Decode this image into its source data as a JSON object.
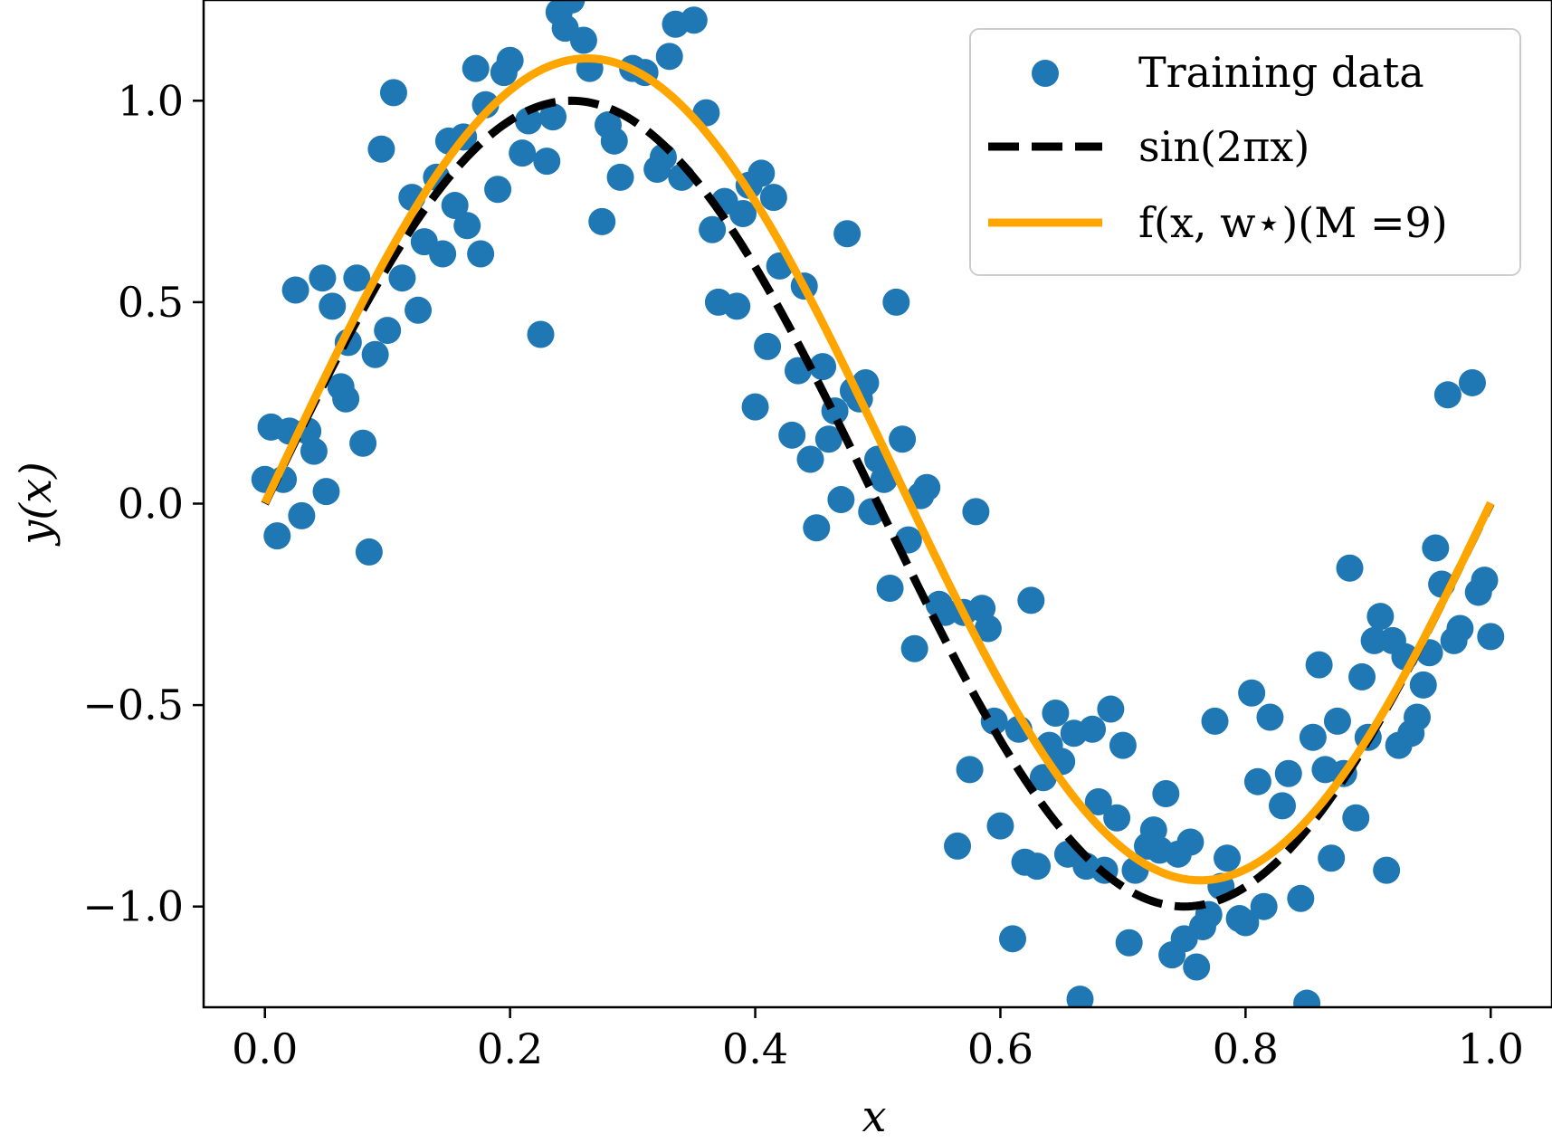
{
  "chart_data": {
    "type": "scatter",
    "xlabel": "x",
    "ylabel": "y(x)",
    "xlim": [
      -0.05,
      1.05
    ],
    "ylim": [
      -1.25,
      1.25
    ],
    "xticks": [
      0.0,
      0.2,
      0.4,
      0.6,
      0.8,
      1.0
    ],
    "xtick_labels": [
      "0.0",
      "0.2",
      "0.4",
      "0.6",
      "0.8",
      "1.0"
    ],
    "yticks": [
      -1.0,
      -0.5,
      0.0,
      0.5,
      1.0
    ],
    "ytick_labels": [
      "−1.0",
      "−0.5",
      "0.0",
      "0.5",
      "1.0"
    ],
    "grid": false,
    "legend_position": "top-right",
    "series": [
      {
        "name": "Training data",
        "kind": "scatter",
        "color": "#1f77b4",
        "points": [
          [
            0.0,
            0.06
          ],
          [
            0.005,
            0.19
          ],
          [
            0.01,
            -0.08
          ],
          [
            0.015,
            0.06
          ],
          [
            0.02,
            0.18
          ],
          [
            0.025,
            0.53
          ],
          [
            0.03,
            -0.03
          ],
          [
            0.035,
            0.18
          ],
          [
            0.04,
            0.13
          ],
          [
            0.05,
            0.03
          ],
          [
            0.047,
            0.56
          ],
          [
            0.055,
            0.49
          ],
          [
            0.062,
            0.29
          ],
          [
            0.066,
            0.26
          ],
          [
            0.068,
            0.4
          ],
          [
            0.075,
            0.56
          ],
          [
            0.08,
            0.15
          ],
          [
            0.085,
            -0.12
          ],
          [
            0.09,
            0.37
          ],
          [
            0.095,
            0.88
          ],
          [
            0.1,
            0.43
          ],
          [
            0.105,
            1.02
          ],
          [
            0.112,
            0.56
          ],
          [
            0.12,
            0.76
          ],
          [
            0.125,
            0.48
          ],
          [
            0.13,
            0.65
          ],
          [
            0.14,
            0.81
          ],
          [
            0.145,
            0.62
          ],
          [
            0.15,
            0.9
          ],
          [
            0.155,
            0.74
          ],
          [
            0.162,
            0.91
          ],
          [
            0.165,
            0.69
          ],
          [
            0.172,
            1.08
          ],
          [
            0.176,
            0.62
          ],
          [
            0.18,
            0.99
          ],
          [
            0.19,
            0.78
          ],
          [
            0.195,
            1.07
          ],
          [
            0.2,
            1.1
          ],
          [
            0.21,
            0.87
          ],
          [
            0.215,
            0.95
          ],
          [
            0.225,
            0.42
          ],
          [
            0.23,
            0.85
          ],
          [
            0.235,
            0.96
          ],
          [
            0.24,
            1.22
          ],
          [
            0.245,
            1.18
          ],
          [
            0.25,
            1.25
          ],
          [
            0.26,
            1.15
          ],
          [
            0.265,
            1.08
          ],
          [
            0.275,
            0.7
          ],
          [
            0.28,
            0.94
          ],
          [
            0.285,
            0.9
          ],
          [
            0.29,
            0.81
          ],
          [
            0.3,
            1.08
          ],
          [
            0.31,
            1.07
          ],
          [
            0.32,
            0.83
          ],
          [
            0.325,
            0.86
          ],
          [
            0.33,
            1.11
          ],
          [
            0.335,
            1.19
          ],
          [
            0.34,
            0.81
          ],
          [
            0.35,
            1.2
          ],
          [
            0.36,
            0.97
          ],
          [
            0.365,
            0.68
          ],
          [
            0.37,
            0.5
          ],
          [
            0.375,
            0.75
          ],
          [
            0.385,
            0.49
          ],
          [
            0.39,
            0.72
          ],
          [
            0.395,
            0.79
          ],
          [
            0.4,
            0.24
          ],
          [
            0.405,
            0.82
          ],
          [
            0.41,
            0.39
          ],
          [
            0.415,
            0.76
          ],
          [
            0.42,
            0.59
          ],
          [
            0.43,
            0.17
          ],
          [
            0.435,
            0.33
          ],
          [
            0.44,
            0.54
          ],
          [
            0.445,
            0.11
          ],
          [
            0.45,
            -0.06
          ],
          [
            0.455,
            0.34
          ],
          [
            0.46,
            0.16
          ],
          [
            0.465,
            0.23
          ],
          [
            0.47,
            0.01
          ],
          [
            0.475,
            0.67
          ],
          [
            0.48,
            0.28
          ],
          [
            0.485,
            0.26
          ],
          [
            0.49,
            0.3
          ],
          [
            0.495,
            -0.02
          ],
          [
            0.5,
            0.11
          ],
          [
            0.505,
            0.06
          ],
          [
            0.51,
            -0.21
          ],
          [
            0.515,
            0.5
          ],
          [
            0.52,
            0.16
          ],
          [
            0.525,
            -0.09
          ],
          [
            0.53,
            -0.36
          ],
          [
            0.535,
            0.02
          ],
          [
            0.54,
            0.04
          ],
          [
            0.55,
            -0.25
          ],
          [
            0.555,
            -0.27
          ],
          [
            0.565,
            -0.85
          ],
          [
            0.57,
            -0.27
          ],
          [
            0.575,
            -0.66
          ],
          [
            0.58,
            -0.02
          ],
          [
            0.585,
            -0.26
          ],
          [
            0.59,
            -0.31
          ],
          [
            0.595,
            -0.54
          ],
          [
            0.6,
            -0.8
          ],
          [
            0.61,
            -1.08
          ],
          [
            0.615,
            -0.56
          ],
          [
            0.62,
            -0.89
          ],
          [
            0.625,
            -0.24
          ],
          [
            0.63,
            -0.9
          ],
          [
            0.635,
            -0.68
          ],
          [
            0.64,
            -0.6
          ],
          [
            0.645,
            -0.52
          ],
          [
            0.65,
            -0.64
          ],
          [
            0.655,
            -0.87
          ],
          [
            0.66,
            -0.57
          ],
          [
            0.665,
            -1.23
          ],
          [
            0.67,
            -0.9
          ],
          [
            0.675,
            -0.56
          ],
          [
            0.68,
            -0.74
          ],
          [
            0.685,
            -0.91
          ],
          [
            0.69,
            -0.51
          ],
          [
            0.695,
            -0.78
          ],
          [
            0.7,
            -0.6
          ],
          [
            0.705,
            -1.09
          ],
          [
            0.71,
            -0.91
          ],
          [
            0.72,
            -0.85
          ],
          [
            0.725,
            -0.81
          ],
          [
            0.73,
            -0.86
          ],
          [
            0.735,
            -0.72
          ],
          [
            0.74,
            -1.12
          ],
          [
            0.745,
            -0.87
          ],
          [
            0.75,
            -1.08
          ],
          [
            0.755,
            -0.84
          ],
          [
            0.76,
            -1.15
          ],
          [
            0.765,
            -1.05
          ],
          [
            0.77,
            -1.02
          ],
          [
            0.775,
            -0.54
          ],
          [
            0.78,
            -0.95
          ],
          [
            0.785,
            -0.88
          ],
          [
            0.795,
            -1.03
          ],
          [
            0.8,
            -1.04
          ],
          [
            0.805,
            -0.47
          ],
          [
            0.81,
            -0.69
          ],
          [
            0.815,
            -1.0
          ],
          [
            0.82,
            -0.53
          ],
          [
            0.83,
            -0.75
          ],
          [
            0.835,
            -0.67
          ],
          [
            0.845,
            -0.98
          ],
          [
            0.85,
            -1.24
          ],
          [
            0.855,
            -0.58
          ],
          [
            0.86,
            -0.4
          ],
          [
            0.865,
            -0.66
          ],
          [
            0.87,
            -0.88
          ],
          [
            0.875,
            -0.54
          ],
          [
            0.88,
            -0.67
          ],
          [
            0.885,
            -0.16
          ],
          [
            0.89,
            -0.78
          ],
          [
            0.895,
            -0.43
          ],
          [
            0.9,
            -0.58
          ],
          [
            0.905,
            -0.34
          ],
          [
            0.91,
            -0.28
          ],
          [
            0.915,
            -0.91
          ],
          [
            0.92,
            -0.34
          ],
          [
            0.925,
            -0.6
          ],
          [
            0.93,
            -0.38
          ],
          [
            0.935,
            -0.57
          ],
          [
            0.94,
            -0.53
          ],
          [
            0.945,
            -0.45
          ],
          [
            0.95,
            -0.37
          ],
          [
            0.955,
            -0.11
          ],
          [
            0.96,
            -0.2
          ],
          [
            0.965,
            0.27
          ],
          [
            0.97,
            -0.34
          ],
          [
            0.975,
            -0.31
          ],
          [
            0.985,
            0.3
          ],
          [
            0.99,
            -0.22
          ],
          [
            0.995,
            -0.19
          ],
          [
            1.0,
            -0.33
          ]
        ]
      },
      {
        "name": "sin(2πx)",
        "kind": "function",
        "style": "dashed",
        "color": "#000000",
        "x_range": [
          0,
          1
        ],
        "amplitude": 1.0,
        "offset": 0.0,
        "phase_shift": 0.0
      },
      {
        "name": "f(x, w⋆)(M =9)",
        "kind": "function",
        "style": "solid",
        "color": "#ffa500",
        "x_range": [
          0,
          1
        ],
        "amplitude": 1.02,
        "offset": 0.085,
        "phase_shift": 0.013
      }
    ]
  }
}
